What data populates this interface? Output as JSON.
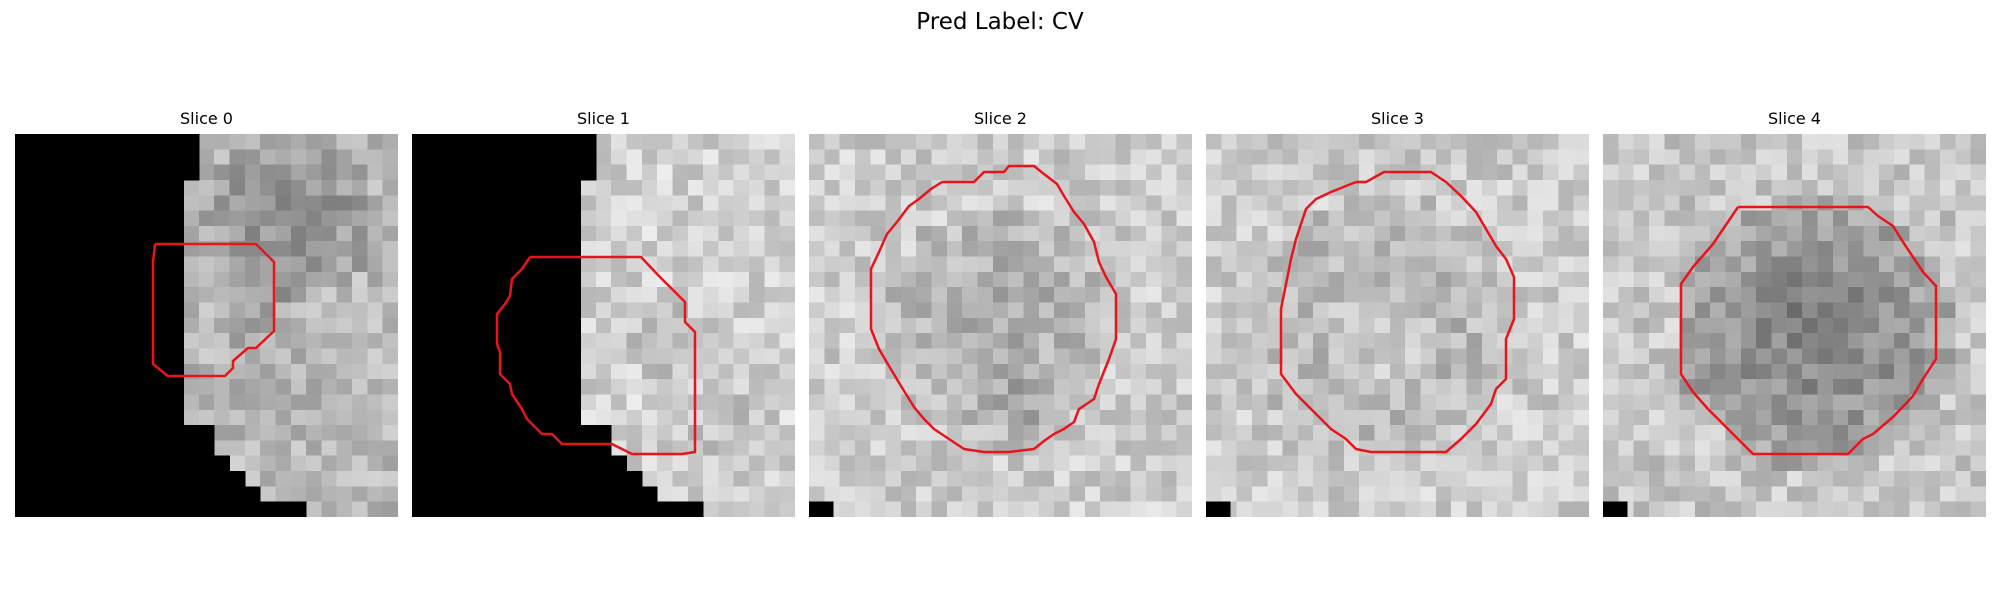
{
  "figure": {
    "suptitle": "Pred Label: CV",
    "panels": [
      {
        "title": "Slice 0"
      },
      {
        "title": "Slice 1"
      },
      {
        "title": "Slice 2"
      },
      {
        "title": "Slice 3"
      },
      {
        "title": "Slice 4"
      }
    ],
    "colors": {
      "contour": "#e8141c",
      "mask": "#000000"
    }
  }
}
